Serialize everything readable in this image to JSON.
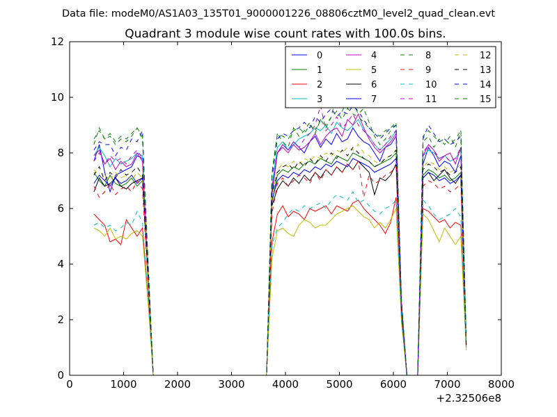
{
  "chart_data": {
    "type": "line",
    "suptitle": "Data file: modeM0/AS1A03_135T01_9000001226_08806cztM0_level2_quad_clean.evt",
    "title": "Quadrant 3 module wise count rates with 100.0s bins.",
    "xlabel": "",
    "ylabel": "",
    "x_offset_label": "+2.32506e8",
    "xlim": [
      0,
      8000
    ],
    "ylim": [
      0,
      12
    ],
    "xticks": [
      0,
      1000,
      2000,
      3000,
      4000,
      5000,
      6000,
      7000,
      8000
    ],
    "yticks": [
      0,
      2,
      4,
      6,
      8,
      10,
      12
    ],
    "x_tick_labels": [
      "0",
      "1000",
      "2000",
      "3000",
      "4000",
      "5000",
      "6000",
      "7000",
      "8000"
    ],
    "y_tick_labels": [
      "0",
      "2",
      "4",
      "6",
      "8",
      "10",
      "12"
    ],
    "grid": false,
    "legend_position": "top-right",
    "x": [
      450,
      550,
      650,
      750,
      850,
      950,
      1050,
      1150,
      1250,
      1350,
      1450,
      1550,
      3650,
      3750,
      3850,
      3950,
      4050,
      4150,
      4250,
      4350,
      4450,
      4550,
      4650,
      4750,
      4850,
      4950,
      5050,
      5150,
      5250,
      5350,
      5450,
      5550,
      5650,
      5750,
      5850,
      5950,
      6050,
      6150,
      6250,
      6450,
      6550,
      6650,
      6750,
      6850,
      6950,
      7050,
      7150,
      7250,
      7350
    ],
    "series": [
      {
        "name": "0",
        "color": "#0000ff",
        "dash": "solid",
        "values": [
          7.7,
          8.3,
          7.3,
          6.6,
          7.2,
          7.3,
          7.4,
          7.5,
          7.9,
          7.8,
          3.9,
          0,
          0,
          6.5,
          8.0,
          8.3,
          8.1,
          8.4,
          8.2,
          8.0,
          8.4,
          8.6,
          8.2,
          8.5,
          8.3,
          8.7,
          8.4,
          8.5,
          8.9,
          8.6,
          8.4,
          8.3,
          8.0,
          7.7,
          8.2,
          8.3,
          8.6,
          2.5,
          0,
          0,
          7.6,
          8.2,
          7.9,
          7.5,
          7.7,
          7.6,
          7.3,
          7.9,
          1.1
        ]
      },
      {
        "name": "1",
        "color": "#008000",
        "dash": "solid",
        "values": [
          7.3,
          7.0,
          6.8,
          7.2,
          6.9,
          6.8,
          6.9,
          7.1,
          6.8,
          7.0,
          3.6,
          0,
          0,
          6.2,
          7.2,
          7.4,
          7.3,
          7.5,
          7.4,
          7.6,
          7.7,
          7.6,
          7.8,
          7.7,
          7.6,
          7.9,
          7.8,
          7.7,
          8.0,
          7.9,
          7.8,
          7.7,
          7.5,
          7.6,
          7.7,
          7.8,
          8.0,
          2.4,
          0,
          0,
          7.2,
          7.4,
          7.3,
          7.1,
          7.2,
          7.0,
          7.1,
          7.3,
          1.1
        ]
      },
      {
        "name": "2",
        "color": "#ff0000",
        "dash": "solid",
        "values": [
          5.8,
          5.6,
          5.4,
          4.8,
          4.9,
          4.7,
          5.6,
          5.3,
          5.0,
          5.3,
          2.9,
          0,
          0,
          4.8,
          5.8,
          6.1,
          5.7,
          5.9,
          5.8,
          5.6,
          6.0,
          5.9,
          6.0,
          6.1,
          5.8,
          6.1,
          6.0,
          5.9,
          6.2,
          6.3,
          6.0,
          5.8,
          5.6,
          5.4,
          5.1,
          5.5,
          6.4,
          2.0,
          0,
          0,
          6.0,
          5.9,
          5.7,
          5.5,
          5.6,
          5.3,
          5.5,
          5.4,
          1.0
        ]
      },
      {
        "name": "3",
        "color": "#00bfbf",
        "dash": "solid",
        "values": [
          7.9,
          8.2,
          7.9,
          7.5,
          7.8,
          7.6,
          7.7,
          7.8,
          8.0,
          7.9,
          3.9,
          0,
          0,
          6.8,
          8.2,
          8.4,
          8.1,
          8.3,
          8.5,
          8.6,
          8.7,
          8.9,
          8.8,
          9.0,
          8.7,
          9.1,
          8.9,
          8.8,
          9.0,
          9.2,
          8.8,
          8.6,
          8.3,
          8.1,
          8.3,
          8.5,
          8.8,
          2.6,
          0,
          0,
          7.9,
          8.1,
          8.0,
          7.8,
          7.9,
          7.7,
          7.8,
          8.1,
          1.2
        ]
      },
      {
        "name": "4",
        "color": "#bf00bf",
        "dash": "solid",
        "values": [
          7.9,
          8.1,
          7.6,
          7.8,
          7.4,
          7.7,
          7.5,
          7.6,
          8.0,
          7.7,
          3.8,
          0,
          0,
          6.6,
          8.0,
          8.2,
          8.0,
          8.3,
          8.1,
          8.2,
          8.4,
          8.7,
          8.3,
          8.6,
          8.8,
          8.9,
          8.6,
          9.2,
          9.0,
          9.4,
          8.9,
          8.5,
          8.2,
          8.0,
          8.2,
          8.4,
          8.7,
          2.5,
          0,
          0,
          7.9,
          8.3,
          8.1,
          7.7,
          7.9,
          8.0,
          7.6,
          8.2,
          1.2
        ]
      },
      {
        "name": "5",
        "color": "#bfbf00",
        "dash": "solid",
        "values": [
          5.3,
          5.2,
          5.0,
          5.3,
          4.9,
          5.0,
          4.9,
          5.1,
          5.2,
          5.0,
          2.7,
          0,
          0,
          4.2,
          5.2,
          5.3,
          5.1,
          5.0,
          5.4,
          5.6,
          5.5,
          5.3,
          5.4,
          5.4,
          5.6,
          5.8,
          5.9,
          6.0,
          6.1,
          5.9,
          5.7,
          5.6,
          5.3,
          5.5,
          5.3,
          5.6,
          6.0,
          1.9,
          0,
          0,
          5.8,
          5.6,
          5.2,
          4.8,
          5.3,
          5.0,
          4.7,
          5.0,
          0.9
        ]
      },
      {
        "name": "6",
        "color": "#000000",
        "dash": "solid",
        "values": [
          6.6,
          7.1,
          6.8,
          6.9,
          7.1,
          6.8,
          6.7,
          6.9,
          7.0,
          7.1,
          3.6,
          0,
          0,
          6.1,
          6.7,
          7.0,
          6.8,
          7.1,
          6.9,
          7.2,
          7.0,
          7.3,
          7.1,
          7.4,
          7.2,
          7.5,
          7.3,
          7.6,
          7.4,
          7.7,
          7.5,
          7.3,
          6.5,
          7.1,
          7.0,
          7.2,
          7.6,
          2.3,
          0,
          0,
          7.1,
          7.3,
          7.0,
          7.2,
          7.4,
          7.1,
          6.9,
          7.2,
          1.1
        ]
      },
      {
        "name": "7",
        "color": "#0000ff",
        "dash": "solid",
        "values": [
          6.9,
          7.2,
          7.0,
          6.8,
          7.1,
          6.9,
          7.0,
          7.2,
          6.9,
          7.1,
          3.6,
          0,
          0,
          6.3,
          7.0,
          7.2,
          7.1,
          7.3,
          7.2,
          7.4,
          7.3,
          7.5,
          7.4,
          7.6,
          7.5,
          7.7,
          7.6,
          7.5,
          7.8,
          7.7,
          7.6,
          7.5,
          7.3,
          7.4,
          7.5,
          7.6,
          7.8,
          2.4,
          0,
          0,
          7.1,
          7.3,
          7.2,
          7.0,
          7.1,
          6.9,
          7.0,
          7.2,
          1.1
        ]
      },
      {
        "name": "8",
        "color": "#008000",
        "dash": "dashed",
        "values": [
          8.3,
          8.9,
          8.5,
          8.6,
          8.3,
          8.5,
          8.4,
          8.6,
          8.9,
          8.5,
          4.2,
          0,
          0,
          7.2,
          8.7,
          8.4,
          8.2,
          8.9,
          8.6,
          8.8,
          9.1,
          8.7,
          9.2,
          8.9,
          9.3,
          10.2,
          9.5,
          9.9,
          9.8,
          9.4,
          9.6,
          9.1,
          8.6,
          8.3,
          8.5,
          8.8,
          9.0,
          2.7,
          0,
          0,
          8.4,
          8.6,
          8.2,
          8.5,
          8.3,
          8.6,
          8.2,
          8.8,
          1.3
        ]
      },
      {
        "name": "9",
        "color": "#ff0000",
        "dash": "dashed",
        "values": [
          6.8,
          6.4,
          6.6,
          6.9,
          6.5,
          6.7,
          6.8,
          6.6,
          7.0,
          6.7,
          3.4,
          0,
          0,
          5.8,
          6.9,
          7.1,
          6.8,
          7.0,
          7.2,
          7.1,
          6.9,
          7.3,
          7.0,
          7.4,
          7.2,
          7.5,
          7.3,
          7.6,
          7.4,
          7.7,
          6.4,
          7.2,
          6.9,
          7.0,
          7.2,
          7.3,
          7.5,
          2.3,
          0,
          0,
          6.8,
          7.0,
          6.9,
          6.7,
          6.8,
          6.6,
          6.7,
          6.9,
          1.0
        ]
      },
      {
        "name": "10",
        "color": "#00bfbf",
        "dash": "dashed",
        "values": [
          5.4,
          5.5,
          5.3,
          5.4,
          5.2,
          5.3,
          5.5,
          5.4,
          5.9,
          5.5,
          2.9,
          0,
          0,
          4.7,
          5.3,
          5.5,
          5.8,
          6.0,
          5.9,
          6.1,
          6.0,
          6.1,
          6.2,
          6.0,
          6.3,
          6.5,
          6.4,
          6.3,
          6.6,
          6.2,
          6.3,
          6.1,
          5.9,
          5.8,
          6.0,
          6.1,
          6.3,
          2.0,
          0,
          0,
          6.3,
          6.1,
          5.8,
          5.6,
          5.7,
          5.8,
          6.0,
          5.7,
          1.0
        ]
      },
      {
        "name": "11",
        "color": "#bf00bf",
        "dash": "dashed",
        "values": [
          7.7,
          8.0,
          7.6,
          7.9,
          7.7,
          7.8,
          7.6,
          7.9,
          8.1,
          7.8,
          3.9,
          0,
          0,
          6.7,
          8.0,
          8.3,
          8.1,
          8.4,
          8.2,
          8.5,
          8.7,
          9.0,
          9.7,
          8.8,
          9.0,
          9.3,
          8.9,
          9.1,
          9.4,
          9.0,
          8.8,
          8.6,
          8.3,
          8.1,
          8.3,
          8.6,
          8.8,
          2.6,
          0,
          0,
          8.0,
          8.3,
          8.1,
          7.8,
          7.9,
          7.7,
          7.8,
          8.2,
          1.2
        ]
      },
      {
        "name": "12",
        "color": "#bfbf00",
        "dash": "dashed",
        "values": [
          7.4,
          7.1,
          7.2,
          7.0,
          7.3,
          7.1,
          7.2,
          7.0,
          7.3,
          7.1,
          3.7,
          0,
          0,
          6.4,
          7.4,
          7.6,
          7.5,
          7.7,
          7.6,
          7.8,
          7.7,
          7.9,
          7.8,
          8.0,
          7.9,
          8.1,
          8.0,
          8.2,
          8.1,
          8.3,
          8.0,
          7.9,
          7.7,
          7.6,
          7.8,
          7.9,
          8.1,
          2.5,
          0,
          0,
          7.5,
          7.7,
          7.6,
          7.4,
          7.5,
          7.3,
          7.4,
          7.6,
          1.1
        ]
      },
      {
        "name": "13",
        "color": "#000000",
        "dash": "dashed",
        "values": [
          7.2,
          7.5,
          7.0,
          7.3,
          7.1,
          7.4,
          7.2,
          7.3,
          7.5,
          7.2,
          3.7,
          0,
          0,
          6.5,
          7.3,
          7.5,
          7.6,
          7.4,
          7.7,
          7.5,
          7.8,
          7.6,
          7.9,
          7.7,
          8.0,
          7.8,
          8.1,
          7.9,
          8.2,
          8.0,
          7.8,
          7.7,
          7.5,
          7.6,
          7.8,
          7.9,
          8.1,
          2.5,
          0,
          0,
          7.4,
          7.6,
          7.5,
          7.3,
          7.4,
          7.2,
          7.3,
          7.5,
          1.1
        ]
      },
      {
        "name": "14",
        "color": "#0000ff",
        "dash": "dashed",
        "values": [
          8.1,
          8.4,
          8.3,
          8.3,
          7.9,
          8.2,
          8.1,
          8.5,
          8.4,
          8.8,
          4.1,
          0,
          0,
          7.1,
          8.5,
          8.7,
          8.6,
          8.8,
          8.9,
          9.1,
          8.9,
          9.3,
          9.1,
          9.4,
          9.6,
          9.3,
          9.5,
          9.4,
          9.7,
          9.5,
          9.2,
          8.9,
          8.7,
          8.5,
          8.7,
          8.9,
          9.0,
          2.7,
          0,
          0,
          8.5,
          9.0,
          8.7,
          8.4,
          8.5,
          8.3,
          8.4,
          8.6,
          1.3
        ]
      },
      {
        "name": "15",
        "color": "#008000",
        "dash": "dashed",
        "values": [
          8.5,
          8.8,
          8.5,
          8.7,
          8.4,
          8.6,
          8.5,
          8.7,
          8.9,
          8.6,
          4.3,
          0,
          0,
          7.3,
          8.7,
          8.6,
          8.5,
          8.8,
          8.9,
          8.7,
          9.0,
          8.8,
          9.2,
          9.0,
          9.3,
          9.5,
          9.2,
          9.6,
          9.4,
          9.3,
          9.1,
          8.9,
          8.7,
          8.6,
          8.8,
          8.9,
          9.1,
          2.7,
          0,
          0,
          8.6,
          8.8,
          8.6,
          8.4,
          8.5,
          8.3,
          8.5,
          8.8,
          1.3
        ]
      }
    ]
  }
}
